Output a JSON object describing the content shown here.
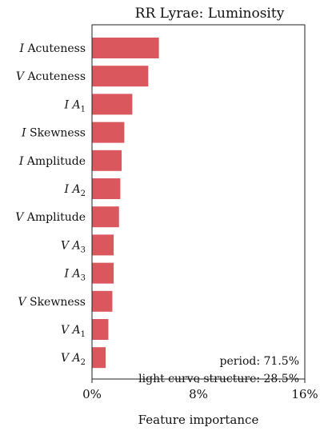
{
  "chart_data": {
    "type": "bar",
    "orientation": "horizontal",
    "title": "RR Lyrae: Luminosity",
    "xlabel": "Feature importance",
    "ylabel": "",
    "xlim": [
      0,
      16
    ],
    "xticks": [
      {
        "value": 0,
        "label": "0%"
      },
      {
        "value": 8,
        "label": "8%"
      },
      {
        "value": 16,
        "label": "16%"
      }
    ],
    "bar_color": "#d9575d",
    "categories": [
      {
        "var": "I",
        "name": "Acuteness",
        "sub": ""
      },
      {
        "var": "V",
        "name": "Acuteness",
        "sub": ""
      },
      {
        "var": "I",
        "name": "A",
        "sub": "1"
      },
      {
        "var": "I",
        "name": "Skewness",
        "sub": ""
      },
      {
        "var": "I",
        "name": "Amplitude",
        "sub": ""
      },
      {
        "var": "I",
        "name": "A",
        "sub": "2"
      },
      {
        "var": "V",
        "name": "Amplitude",
        "sub": ""
      },
      {
        "var": "V",
        "name": "A",
        "sub": "3"
      },
      {
        "var": "I",
        "name": "A",
        "sub": "3"
      },
      {
        "var": "V",
        "name": "Skewness",
        "sub": ""
      },
      {
        "var": "V",
        "name": "A",
        "sub": "1"
      },
      {
        "var": "V",
        "name": "A",
        "sub": "2"
      }
    ],
    "values": [
      5.0,
      4.2,
      3.0,
      2.4,
      2.2,
      2.1,
      2.0,
      1.6,
      1.6,
      1.5,
      1.2,
      1.0
    ],
    "annotations": [
      {
        "id": "period",
        "text": "period: 71.5%"
      },
      {
        "id": "lc",
        "text": "light curve structure: 28.5%"
      }
    ],
    "grid": false,
    "legend": "none"
  }
}
